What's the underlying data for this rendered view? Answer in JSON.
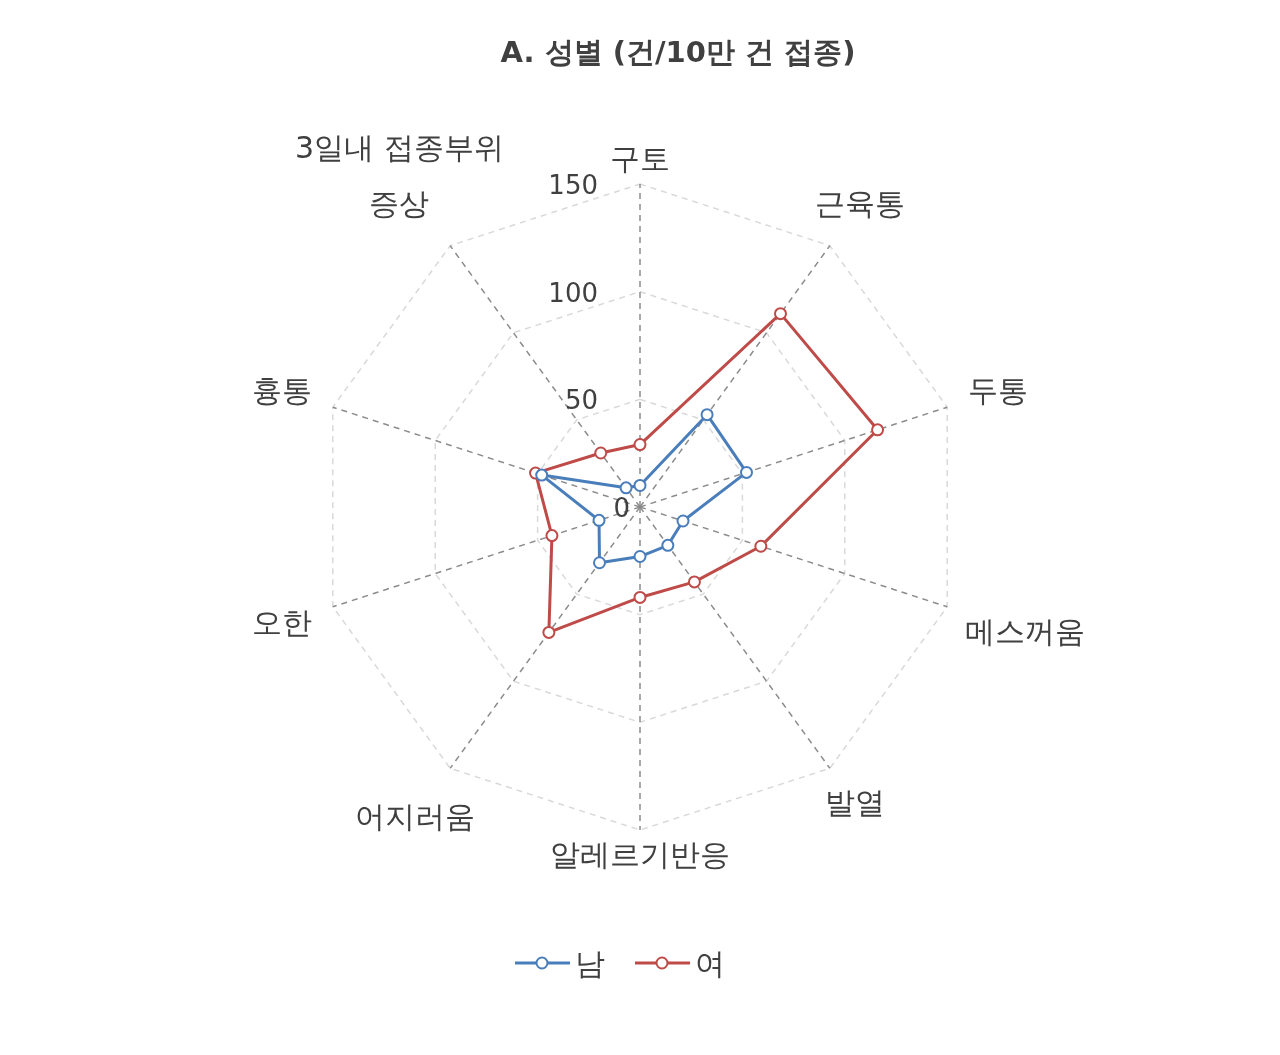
{
  "chart_data": {
    "type": "radar",
    "title": "A. 성별 (건/10만 건 접종)",
    "categories": [
      "구토",
      "근육통",
      "두통",
      "메스꺼움",
      "발열",
      "알레르기반응",
      "어지러움",
      "오한",
      "흉통",
      "3일내 접종부위 증상"
    ],
    "series": [
      {
        "name": "남",
        "color": "#4a7ebb",
        "values": [
          10,
          53,
          52,
          21,
          22,
          23,
          32,
          20,
          48,
          11
        ]
      },
      {
        "name": "여",
        "color": "#be4b48",
        "values": [
          29,
          111,
          116,
          59,
          43,
          42,
          72,
          43,
          51,
          31
        ]
      }
    ],
    "ylim": [
      0,
      150
    ],
    "yticks": [
      0,
      50,
      100,
      150
    ],
    "marker": "circle",
    "legend": "bottom",
    "grid": true
  }
}
